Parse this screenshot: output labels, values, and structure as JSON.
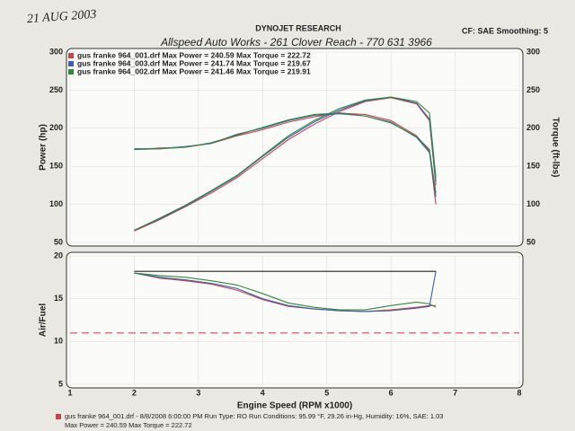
{
  "header": {
    "date_note": "21 AUG 2003",
    "brand": "DYNOJET RESEARCH",
    "shop": "Allspeed Auto Works - 261 Clover Reach - 770 631 3966",
    "settings": "CF: SAE Smoothing: 5"
  },
  "footer": {
    "line1": "gus franke 964_001.drf - 8/8/2008 6:00:00 PM  Run Type: RO  Run Conditions: 95.99 °F, 29.26 in-Hg,  Humidity: 16%,  SAE: 1.03",
    "line2": "Max Power = 240.59  Max Torque = 222.72"
  },
  "chart_data": [
    {
      "type": "line",
      "ylabel": "Power (hp)",
      "y2label": "Torque (ft-lbs)",
      "xlim": [
        1,
        8
      ],
      "xticks": [
        1,
        2,
        3,
        4,
        5,
        6,
        7,
        8
      ],
      "ylim": [
        50,
        300
      ],
      "yticks": [
        50,
        100,
        150,
        200,
        250,
        300
      ],
      "y2lim": [
        50,
        300
      ],
      "y2ticks": [
        50,
        100,
        150,
        200,
        250,
        300
      ],
      "grid": true,
      "legend": "upper left",
      "x": [
        2.0,
        2.4,
        2.8,
        3.2,
        3.6,
        4.0,
        4.4,
        4.8,
        5.2,
        5.6,
        6.0,
        6.4,
        6.6,
        6.7
      ],
      "series": [
        {
          "name": "gus franke 964_001.drf Max Power = 240.59   Max Torque = 222.72",
          "color": "#d0404a",
          "values": [
            65,
            80,
            97,
            115,
            135,
            160,
            185,
            205,
            222,
            235,
            240,
            232,
            210,
            125
          ]
        },
        {
          "name": "gus franke 964_003.drf Max Power = 241.74   Max Torque = 219.67",
          "color": "#3a5fb0",
          "values": [
            66,
            81,
            98,
            117,
            137,
            163,
            188,
            208,
            224,
            236,
            241,
            233,
            212,
            130
          ]
        },
        {
          "name": "gus franke 964_002.drf Max Power = 241.46   Max Torque = 219.91",
          "color": "#2f8a3c",
          "values": [
            66,
            82,
            99,
            118,
            138,
            164,
            190,
            210,
            226,
            237,
            241,
            235,
            220,
            135
          ]
        },
        {
          "color": "#d0404a",
          "axis": "y2",
          "values": [
            172,
            174,
            175,
            180,
            190,
            198,
            208,
            215,
            220,
            218,
            210,
            190,
            170,
            100
          ]
        },
        {
          "color": "#3a5fb0",
          "axis": "y2",
          "values": [
            173,
            173,
            176,
            180,
            192,
            200,
            210,
            217,
            219,
            216,
            208,
            188,
            168,
            110
          ]
        },
        {
          "color": "#2f8a3c",
          "axis": "y2",
          "values": [
            172,
            173,
            175,
            181,
            191,
            201,
            211,
            218,
            220,
            216,
            207,
            189,
            172,
            115
          ]
        }
      ]
    },
    {
      "type": "line",
      "ylabel": "Air/Fuel",
      "xlabel": "Engine Speed (RPM x1000)",
      "xlim": [
        1,
        8
      ],
      "xticks": [
        1,
        2,
        3,
        4,
        5,
        6,
        7,
        8
      ],
      "ylim": [
        5,
        20
      ],
      "yticks": [
        5,
        10,
        15,
        20
      ],
      "grid": true,
      "x": [
        2.0,
        2.4,
        2.8,
        3.2,
        3.6,
        4.0,
        4.4,
        4.8,
        5.2,
        5.6,
        6.0,
        6.4,
        6.6,
        6.7
      ],
      "series": [
        {
          "color": "#d0404a",
          "values": [
            18,
            17.4,
            17.1,
            16.7,
            16.0,
            14.9,
            14.1,
            13.8,
            13.6,
            13.5,
            13.7,
            14.0,
            14.2,
            14.2
          ]
        },
        {
          "color": "#3a5fb0",
          "values": [
            18,
            17.5,
            17.2,
            16.8,
            16.2,
            15.0,
            14.2,
            13.8,
            13.6,
            13.5,
            13.6,
            13.9,
            14.1,
            18.2
          ]
        },
        {
          "color": "#2f8a3c",
          "values": [
            18,
            17.7,
            17.5,
            17.1,
            16.6,
            15.6,
            14.5,
            14.0,
            13.7,
            13.7,
            14.2,
            14.6,
            14.4,
            14.0
          ]
        },
        {
          "color": "#222222",
          "values": [
            18.2,
            18.2,
            18.2,
            18.2,
            18.2,
            18.2,
            18.2,
            18.2,
            18.2,
            18.2,
            18.2,
            18.2,
            18.2,
            18.2
          ]
        }
      ],
      "hlines": [
        {
          "value": 11,
          "color": "#e04848",
          "dash": true
        }
      ]
    }
  ]
}
